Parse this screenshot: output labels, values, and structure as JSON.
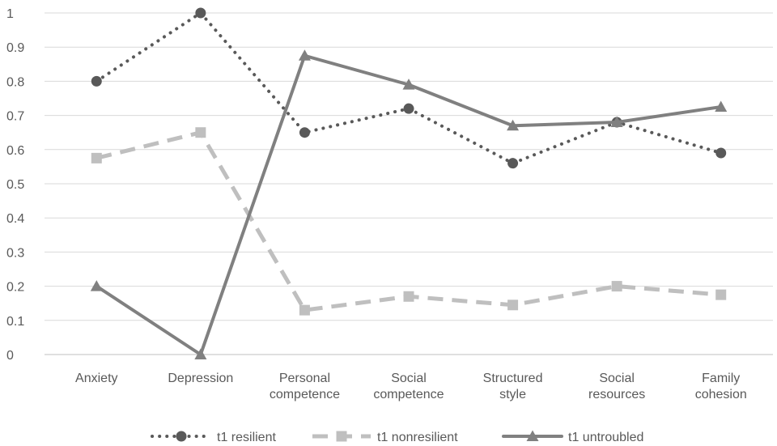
{
  "chart_data": {
    "type": "line",
    "categories": [
      [
        "Anxiety"
      ],
      [
        "Depression"
      ],
      [
        "Personal",
        "competence"
      ],
      [
        "Social",
        "competence"
      ],
      [
        "Structured",
        "style"
      ],
      [
        "Social",
        "resources"
      ],
      [
        "Family",
        "cohesion"
      ]
    ],
    "ylim": [
      0,
      1
    ],
    "yticks": [
      "0",
      "0.1",
      "0.2",
      "0.3",
      "0.4",
      "0.5",
      "0.6",
      "0.7",
      "0.8",
      "0.9",
      "1"
    ],
    "grid": true,
    "legend_position": "bottom",
    "series": [
      {
        "name": "t1 resilient",
        "values": [
          0.8,
          1.0,
          0.65,
          0.72,
          0.56,
          0.68,
          0.59
        ],
        "color": "#595959",
        "line_style": "dotted",
        "marker": "circle"
      },
      {
        "name": "t1 nonresilient",
        "values": [
          0.575,
          0.65,
          0.13,
          0.17,
          0.145,
          0.2,
          0.175
        ],
        "color": "#bfbfbf",
        "line_style": "dashed",
        "marker": "square"
      },
      {
        "name": "t1 untroubled",
        "values": [
          0.2,
          0.0,
          0.875,
          0.79,
          0.67,
          0.68,
          0.725
        ],
        "color": "#808080",
        "line_style": "solid",
        "marker": "triangle"
      }
    ]
  }
}
